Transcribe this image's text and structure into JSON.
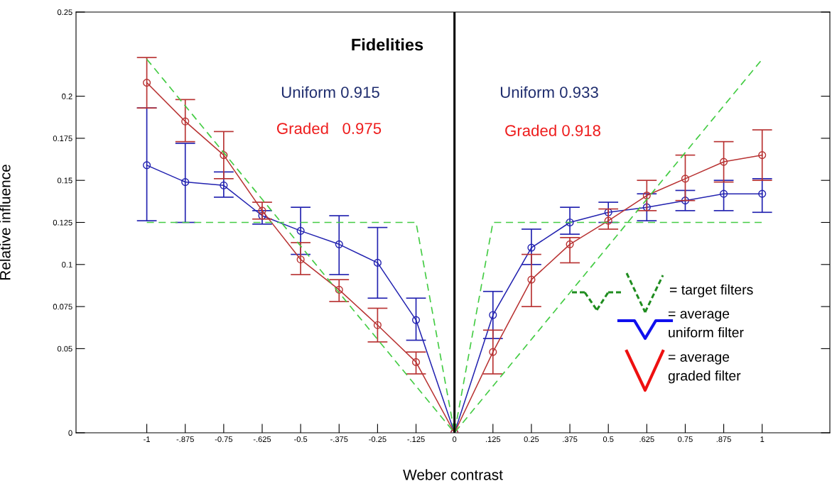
{
  "chart_data": {
    "type": "line",
    "xlabel": "Weber contrast",
    "ylabel": "Relative influence",
    "x": [
      -1,
      -0.875,
      -0.75,
      -0.625,
      -0.5,
      -0.375,
      -0.25,
      -0.125,
      0,
      0.125,
      0.25,
      0.375,
      0.5,
      0.625,
      0.75,
      0.875,
      1
    ],
    "series": [
      {
        "color": "#2222b0",
        "marker": "circle",
        "values": [
          0.159,
          0.149,
          0.147,
          0.129,
          0.12,
          0.112,
          0.101,
          0.067,
          0,
          0.07,
          0.11,
          0.125,
          0.131,
          0.134,
          0.138,
          0.142,
          0.142
        ],
        "errors": [
          [
            0.126,
            0.193
          ],
          [
            0.125,
            0.172
          ],
          [
            0.14,
            0.155
          ],
          [
            0.124,
            0.132
          ],
          [
            0.106,
            0.134
          ],
          [
            0.094,
            0.129
          ],
          [
            0.08,
            0.122
          ],
          [
            0.055,
            0.08
          ],
          null,
          [
            0.056,
            0.084
          ],
          [
            0.1,
            0.121
          ],
          [
            0.118,
            0.134
          ],
          [
            0.125,
            0.137
          ],
          [
            0.126,
            0.142
          ],
          [
            0.132,
            0.144
          ],
          [
            0.132,
            0.15
          ],
          [
            0.131,
            0.151
          ]
        ]
      },
      {
        "color": "#b83232",
        "marker": "circle",
        "values": [
          0.208,
          0.185,
          0.165,
          0.132,
          0.103,
          0.085,
          0.064,
          0.042,
          0,
          0.048,
          0.091,
          0.112,
          0.126,
          0.141,
          0.151,
          0.161,
          0.165
        ],
        "errors": [
          [
            0.193,
            0.223
          ],
          [
            0.173,
            0.198
          ],
          [
            0.151,
            0.179
          ],
          [
            0.127,
            0.137
          ],
          [
            0.094,
            0.113
          ],
          [
            0.078,
            0.091
          ],
          [
            0.054,
            0.074
          ],
          [
            0.035,
            0.048
          ],
          null,
          [
            0.035,
            0.061
          ],
          [
            0.075,
            0.106
          ],
          [
            0.101,
            0.116
          ],
          [
            0.121,
            0.133
          ],
          [
            0.132,
            0.15
          ],
          [
            0.138,
            0.165
          ],
          [
            0.149,
            0.173
          ],
          [
            0.15,
            0.18
          ]
        ]
      },
      {
        "color": "#44cc44",
        "marker": "none",
        "line_style": "dashed",
        "x": [
          -1,
          -0.125,
          0,
          0.125,
          1
        ],
        "values": [
          0.125,
          0.125,
          0,
          0.125,
          0.125
        ]
      },
      {
        "color": "#44cc44",
        "marker": "none",
        "line_style": "dashed",
        "x": [
          -1,
          0,
          1
        ],
        "values": [
          0.222,
          0,
          0.222
        ]
      }
    ],
    "ref_lines": [
      {
        "axis": "x",
        "value": 0,
        "color": "#000000",
        "line_style": "solid"
      }
    ],
    "annotations": [
      "Fidelities",
      "Uniform 0.915",
      "Graded   0.975",
      "Uniform 0.933",
      "Graded 0.918",
      "= target filters",
      "= average\nuniform filter",
      "= average\ngraded filter"
    ],
    "xlim": [
      -1.23,
      1.22
    ],
    "ylim": [
      0,
      0.25
    ],
    "xticks": [
      {
        "value": -1,
        "label": "-1"
      },
      {
        "value": -0.875,
        "label": "-.875"
      },
      {
        "value": -0.75,
        "label": "-0.75"
      },
      {
        "value": -0.625,
        "label": "-.625"
      },
      {
        "value": -0.5,
        "label": "-0.5"
      },
      {
        "value": -0.375,
        "label": "-.375"
      },
      {
        "value": -0.25,
        "label": "-0.25"
      },
      {
        "value": -0.125,
        "label": "-.125"
      },
      {
        "value": 0,
        "label": "0"
      },
      {
        "value": 0.125,
        "label": ".125"
      },
      {
        "value": 0.25,
        "label": "0.25"
      },
      {
        "value": 0.375,
        "label": ".375"
      },
      {
        "value": 0.5,
        "label": "0.5"
      },
      {
        "value": 0.625,
        "label": ".625"
      },
      {
        "value": 0.75,
        "label": "0.75"
      },
      {
        "value": 0.875,
        "label": ".875"
      },
      {
        "value": 1,
        "label": "1"
      }
    ],
    "yticks": [
      0,
      0.05,
      0.075,
      0.1,
      0.125,
      0.15,
      0.175,
      0.2,
      0.25
    ],
    "grid": false,
    "legend": false
  }
}
